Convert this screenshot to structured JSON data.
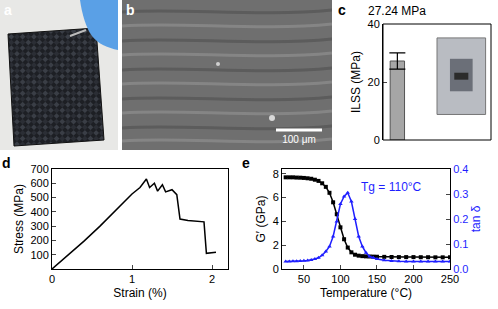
{
  "photos": [
    {
      "panel": "a"
    },
    {
      "panel": "b",
      "scale_bar": "100 μm"
    }
  ],
  "chart_data": [
    {
      "panel": "c",
      "type": "bar",
      "categories": [
        null
      ],
      "values": [
        27.24
      ],
      "error": [
        2.8
      ],
      "value_labels": [
        "27.24 MPa"
      ],
      "data_labels": true,
      "y_label": "ILSS (MPa)",
      "ylim": [
        0,
        40
      ],
      "yticks": [
        0,
        20,
        40
      ],
      "color": "#a6a6a6",
      "tick_labels": "y"
    },
    {
      "panel": "d",
      "type": "line",
      "color": "#000000",
      "x_label": "Strain (%)",
      "y_label": "Stress (MPa)",
      "x": [
        0,
        0.2,
        0.4,
        0.6,
        0.8,
        1.0,
        1.1,
        1.18,
        1.22,
        1.28,
        1.32,
        1.38,
        1.42,
        1.5,
        1.56,
        1.6,
        1.7,
        1.8,
        1.9,
        1.93,
        2.0,
        2.05
      ],
      "values": [
        0,
        95,
        195,
        300,
        410,
        525,
        570,
        630,
        570,
        600,
        545,
        590,
        540,
        555,
        520,
        350,
        340,
        335,
        330,
        110,
        112,
        118
      ],
      "xlim": [
        0,
        2.2
      ],
      "xticks": [
        0,
        1,
        2
      ],
      "ylim": [
        0,
        700
      ],
      "yticks": [
        100,
        200,
        300,
        400,
        500,
        600,
        700
      ]
    },
    {
      "panel": "e",
      "type": "line",
      "x_label": "Temperature (°C)",
      "y_label": "G′ (GPa)",
      "y2_label": "tan δ",
      "x": [
        25,
        30,
        35,
        40,
        45,
        50,
        55,
        60,
        65,
        70,
        75,
        80,
        85,
        90,
        95,
        100,
        105,
        110,
        115,
        120,
        125,
        130,
        135,
        140,
        145,
        150,
        160,
        170,
        180,
        190,
        200,
        210,
        220,
        230,
        240,
        250
      ],
      "series": [
        {
          "name": "G′",
          "color": "#000000",
          "marker": "square",
          "values": [
            7.7,
            7.7,
            7.7,
            7.68,
            7.67,
            7.65,
            7.62,
            7.58,
            7.5,
            7.4,
            7.2,
            6.9,
            6.4,
            5.6,
            4.6,
            3.5,
            2.5,
            1.8,
            1.4,
            1.2,
            1.12,
            1.08,
            1.06,
            1.05,
            1.04,
            1.03,
            1.02,
            1.01,
            1.0,
            1.0,
            1.0,
            0.99,
            0.99,
            0.98,
            0.98,
            0.98
          ]
        },
        {
          "name": "tan δ",
          "axis": "y2",
          "color": "#1f1fff",
          "marker": "triangle",
          "values": [
            0.03,
            0.03,
            0.031,
            0.031,
            0.032,
            0.033,
            0.034,
            0.036,
            0.04,
            0.045,
            0.055,
            0.07,
            0.09,
            0.13,
            0.19,
            0.26,
            0.29,
            0.305,
            0.27,
            0.2,
            0.13,
            0.09,
            0.065,
            0.05,
            0.045,
            0.04,
            0.035,
            0.032,
            0.031,
            0.03,
            0.03,
            0.03,
            0.03,
            0.03,
            0.03,
            0.03
          ]
        }
      ],
      "annotations": [
        {
          "text": "Tg = 110°C",
          "x": 125,
          "y": 0.33,
          "axis": "y2",
          "color": "#1f1fff"
        }
      ],
      "xlim": [
        20,
        250
      ],
      "xticks": [
        50,
        100,
        150,
        200,
        250
      ],
      "ylim": [
        0,
        8.4
      ],
      "yticks": [
        0,
        2,
        4,
        6,
        8
      ],
      "y2lim": [
        0,
        0.4
      ],
      "y2ticks": [
        {
          "value": 0,
          "label": "0.0"
        },
        0.1,
        0.2,
        0.3,
        0.4
      ]
    }
  ]
}
